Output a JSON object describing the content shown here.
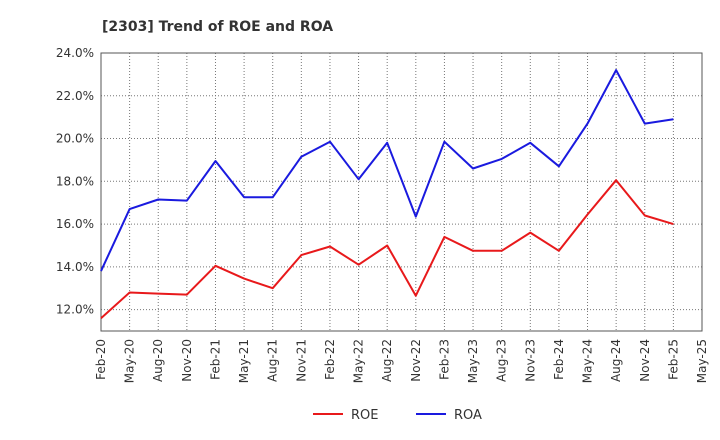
{
  "chart_data": {
    "type": "line",
    "title": "[2303]  Trend of ROE and ROA",
    "xlabel": "",
    "ylabel": "",
    "x": [
      "Feb-20",
      "May-20",
      "Aug-20",
      "Nov-20",
      "Feb-21",
      "May-21",
      "Aug-21",
      "Nov-21",
      "Feb-22",
      "May-22",
      "Aug-22",
      "Nov-22",
      "Feb-23",
      "May-23",
      "Aug-23",
      "Nov-23",
      "Feb-24",
      "May-24",
      "Aug-24",
      "Nov-24",
      "Feb-25",
      "May-25"
    ],
    "ylim": [
      11.0,
      24.0
    ],
    "yticks": [
      12.0,
      14.0,
      16.0,
      18.0,
      20.0,
      22.0,
      24.0
    ],
    "ytick_labels": [
      "12.0%",
      "14.0%",
      "16.0%",
      "18.0%",
      "20.0%",
      "22.0%",
      "24.0%"
    ],
    "grid": true,
    "legend": "bottom",
    "series": [
      {
        "name": "ROE",
        "color": "#e8191b",
        "values": [
          11.6,
          12.8,
          12.75,
          12.7,
          14.05,
          13.45,
          13.0,
          14.55,
          14.95,
          14.1,
          15.0,
          12.65,
          15.4,
          14.75,
          14.75,
          15.6,
          14.75,
          16.45,
          18.05,
          16.4,
          16.0,
          null
        ]
      },
      {
        "name": "ROA",
        "color": "#1a1adf",
        "values": [
          13.8,
          16.7,
          17.15,
          17.1,
          18.95,
          17.25,
          17.25,
          19.15,
          19.85,
          18.1,
          19.8,
          16.35,
          19.85,
          18.6,
          19.05,
          19.8,
          18.7,
          20.7,
          23.2,
          20.7,
          20.9,
          null
        ]
      }
    ]
  }
}
